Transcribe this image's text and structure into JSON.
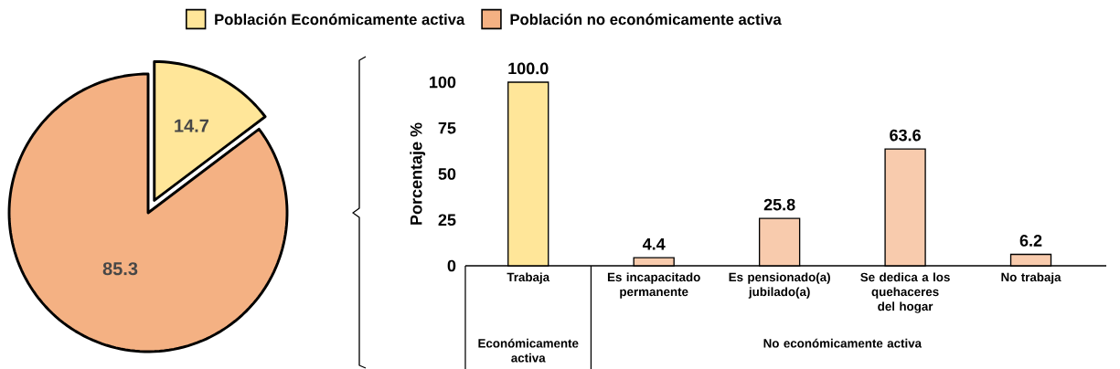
{
  "chart_data": [
    {
      "type": "pie",
      "categories": [
        "Población Económicamente activa",
        "Población no económicamente activa"
      ],
      "values": [
        14.7,
        85.3
      ],
      "colors": [
        "#ffe699",
        "#f4b183"
      ],
      "data_labels": true,
      "legend": "top"
    },
    {
      "type": "bar",
      "categories": [
        "Trabaja",
        "Es incapacitado permanente",
        "Es pensionado(a) jubilado(a)",
        "Se dedica a los quehaceres del hogar",
        "No trabaja"
      ],
      "values": [
        100.0,
        4.4,
        25.8,
        63.6,
        6.2
      ],
      "value_labels": [
        "100.0",
        "4.4",
        "25.8",
        "63.6",
        "6.2"
      ],
      "colors": [
        "#ffe699",
        "#f8cbad",
        "#f8cbad",
        "#f8cbad",
        "#f8cbad"
      ],
      "ylabel": "Porcentaje %",
      "ylim": [
        0,
        100
      ],
      "yticks": [
        0,
        25,
        50,
        75,
        100
      ],
      "annotations": [
        "Económicamente activa",
        "No económicamente activa"
      ]
    }
  ]
}
